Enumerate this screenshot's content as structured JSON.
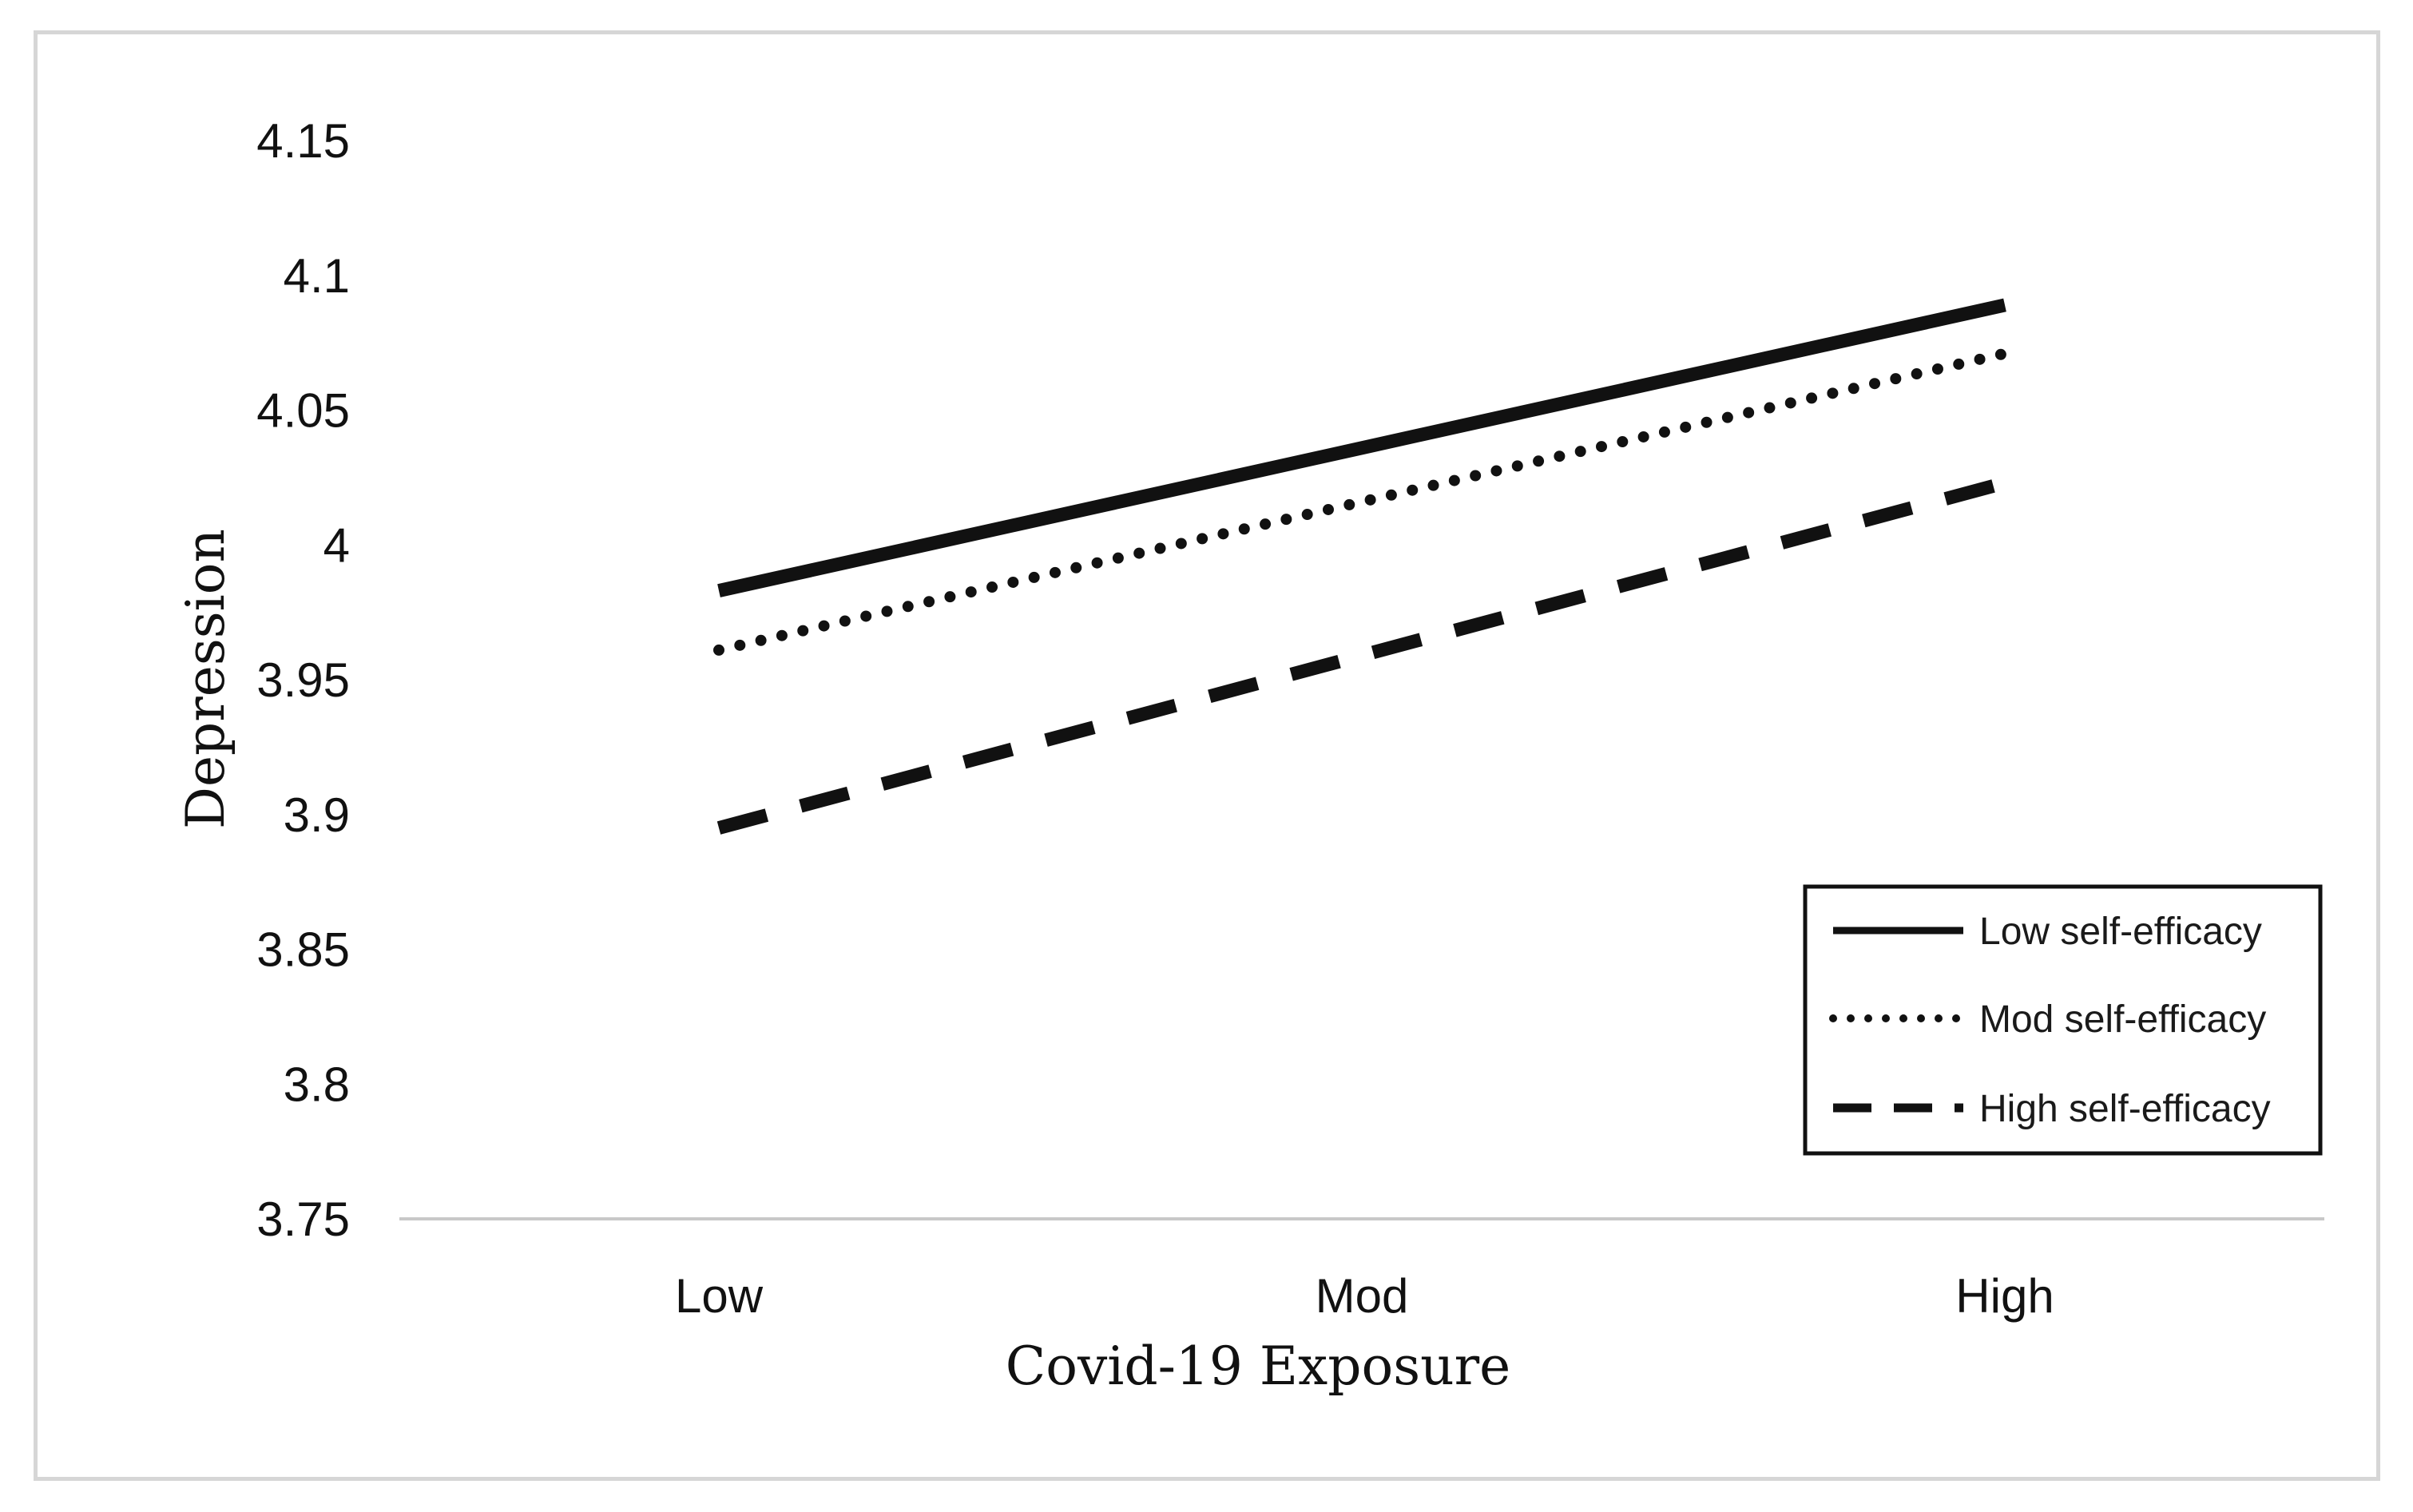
{
  "chart_data": {
    "type": "line",
    "title": "",
    "xlabel": "Covid-19 Exposure",
    "ylabel": "Depression",
    "categories": [
      "Low",
      "Mod",
      "High"
    ],
    "ylim": [
      3.75,
      4.15
    ],
    "yticks": [
      "3.75",
      "3.8",
      "3.85",
      "3.9",
      "3.95",
      "4",
      "4.05",
      "4.1",
      "4.15"
    ],
    "grid": false,
    "legend_position": "bottom-right",
    "series": [
      {
        "name": "Low self-efficacy",
        "style": "solid",
        "values": [
          3.983,
          4.036,
          4.089
        ]
      },
      {
        "name": "Mod self-efficacy",
        "style": "dotted",
        "values": [
          3.961,
          4.016,
          4.071
        ]
      },
      {
        "name": "High self-efficacy",
        "style": "dashed",
        "values": [
          3.895,
          3.959,
          4.023
        ]
      }
    ],
    "colors": {
      "line": "#111111",
      "axis": "#c8c8c8",
      "frame": "#d6d6d6"
    }
  }
}
